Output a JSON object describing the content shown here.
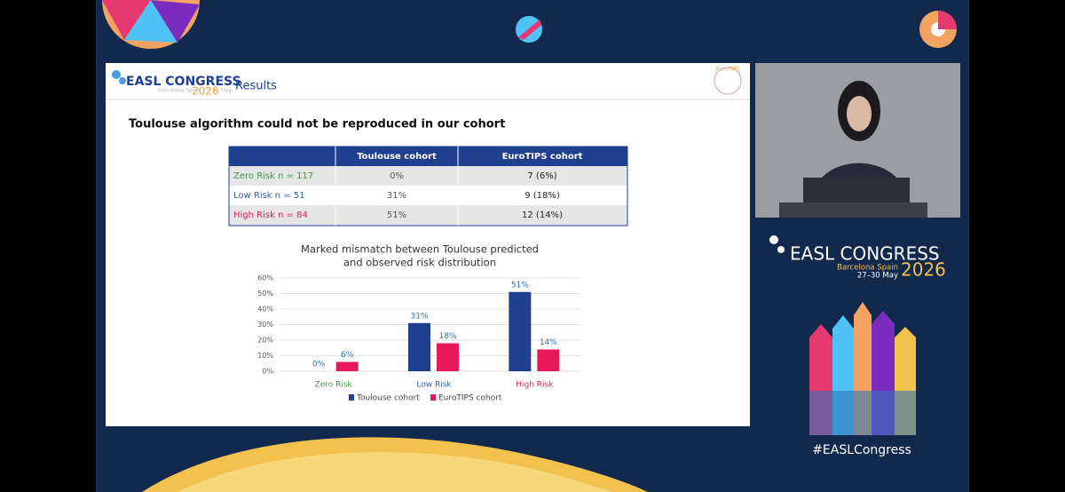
{
  "header": {
    "logo": "EASL CONGRESS",
    "place": "Barcelona Spain 27–30 May",
    "year": "2026",
    "section": "Results",
    "partner": "EuroTIPS"
  },
  "slide": {
    "heading": "Toulouse algorithm could not be reproduced in our cohort",
    "table": {
      "header": [
        "Toulouse cohort",
        "EuroTIPS cohort"
      ],
      "rows": [
        [
          "Zero Risk n = 117",
          "0%",
          "7 (6%)"
        ],
        [
          "Low Risk n = 51",
          "31%",
          "9 (18%)"
        ],
        [
          "High Risk n = 84",
          "51%",
          "12 (14%)"
        ]
      ]
    }
  },
  "chart_data": {
    "type": "bar",
    "title": [
      "Marked mismatch between Toulouse predicted",
      "and observed risk distribution"
    ],
    "categories": [
      "Zero Risk",
      "Low Risk",
      "High Risk"
    ],
    "category_colors": [
      "#3a9a4a",
      "#2e5fa8",
      "#d6245a"
    ],
    "series": [
      {
        "name": "Toulouse cohort",
        "color": "#1f3f8f",
        "values": [
          0,
          31,
          51
        ],
        "value_labels": [
          "0%",
          "31%",
          "51%"
        ]
      },
      {
        "name": "EuroTIPS cohort",
        "color": "#e8195a",
        "values": [
          6,
          18,
          14
        ],
        "value_labels": [
          "6%",
          "18%",
          "14%"
        ]
      }
    ],
    "ylim": [
      0,
      60
    ],
    "yticks": [
      {
        "value": 0,
        "label": "0%"
      },
      {
        "value": 10,
        "label": "10%"
      },
      {
        "value": 20,
        "label": "20%"
      },
      {
        "value": 30,
        "label": "30%"
      },
      {
        "value": 40,
        "label": "40%"
      },
      {
        "value": 50,
        "label": "50%"
      },
      {
        "value": 60,
        "label": "60%"
      }
    ],
    "grid": true,
    "legend": "bottom"
  },
  "sidebar": {
    "logo": "EASL CONGRESS",
    "place": "Barcelona Spain",
    "dates": "27–30 May",
    "year": "2026",
    "hashtag": "#EASLCongress"
  }
}
